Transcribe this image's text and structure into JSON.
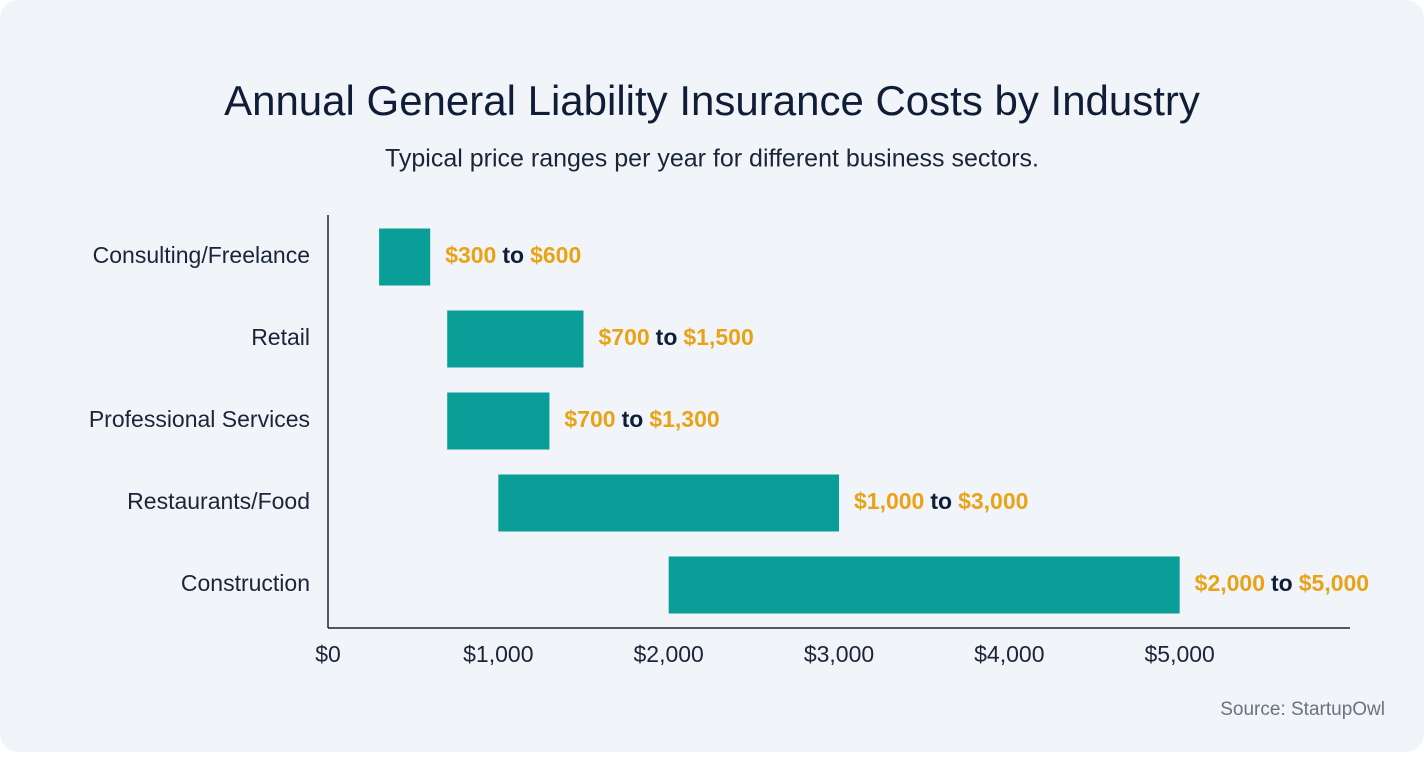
{
  "chart_data": {
    "type": "range-bar",
    "title": "Annual General Liability Insurance Costs by Industry",
    "subtitle": "Typical price ranges per year for different business sectors.",
    "categories": [
      "Consulting/Freelance",
      "Retail",
      "Professional Services",
      "Restaurants/Food",
      "Construction"
    ],
    "low": [
      300,
      700,
      700,
      1000,
      2000
    ],
    "high": [
      600,
      1500,
      1300,
      3000,
      5000
    ],
    "low_labels": [
      "$300",
      "$700",
      "$700",
      "$1,000",
      "$2,000"
    ],
    "high_labels": [
      "$600",
      "$1,500",
      "$1,300",
      "$3,000",
      "$5,000"
    ],
    "range_word": "to",
    "color": "#0a9e98",
    "label_color": "#e8a317",
    "xlim": [
      0,
      6000
    ],
    "xticks": [
      {
        "value": 0,
        "label": "$0"
      },
      {
        "value": 1000,
        "label": "$1,000"
      },
      {
        "value": 2000,
        "label": "$2,000"
      },
      {
        "value": 3000,
        "label": "$3,000"
      },
      {
        "value": 4000,
        "label": "$4,000"
      },
      {
        "value": 5000,
        "label": "$5,000"
      }
    ],
    "source": "Source: StartupOwl"
  }
}
